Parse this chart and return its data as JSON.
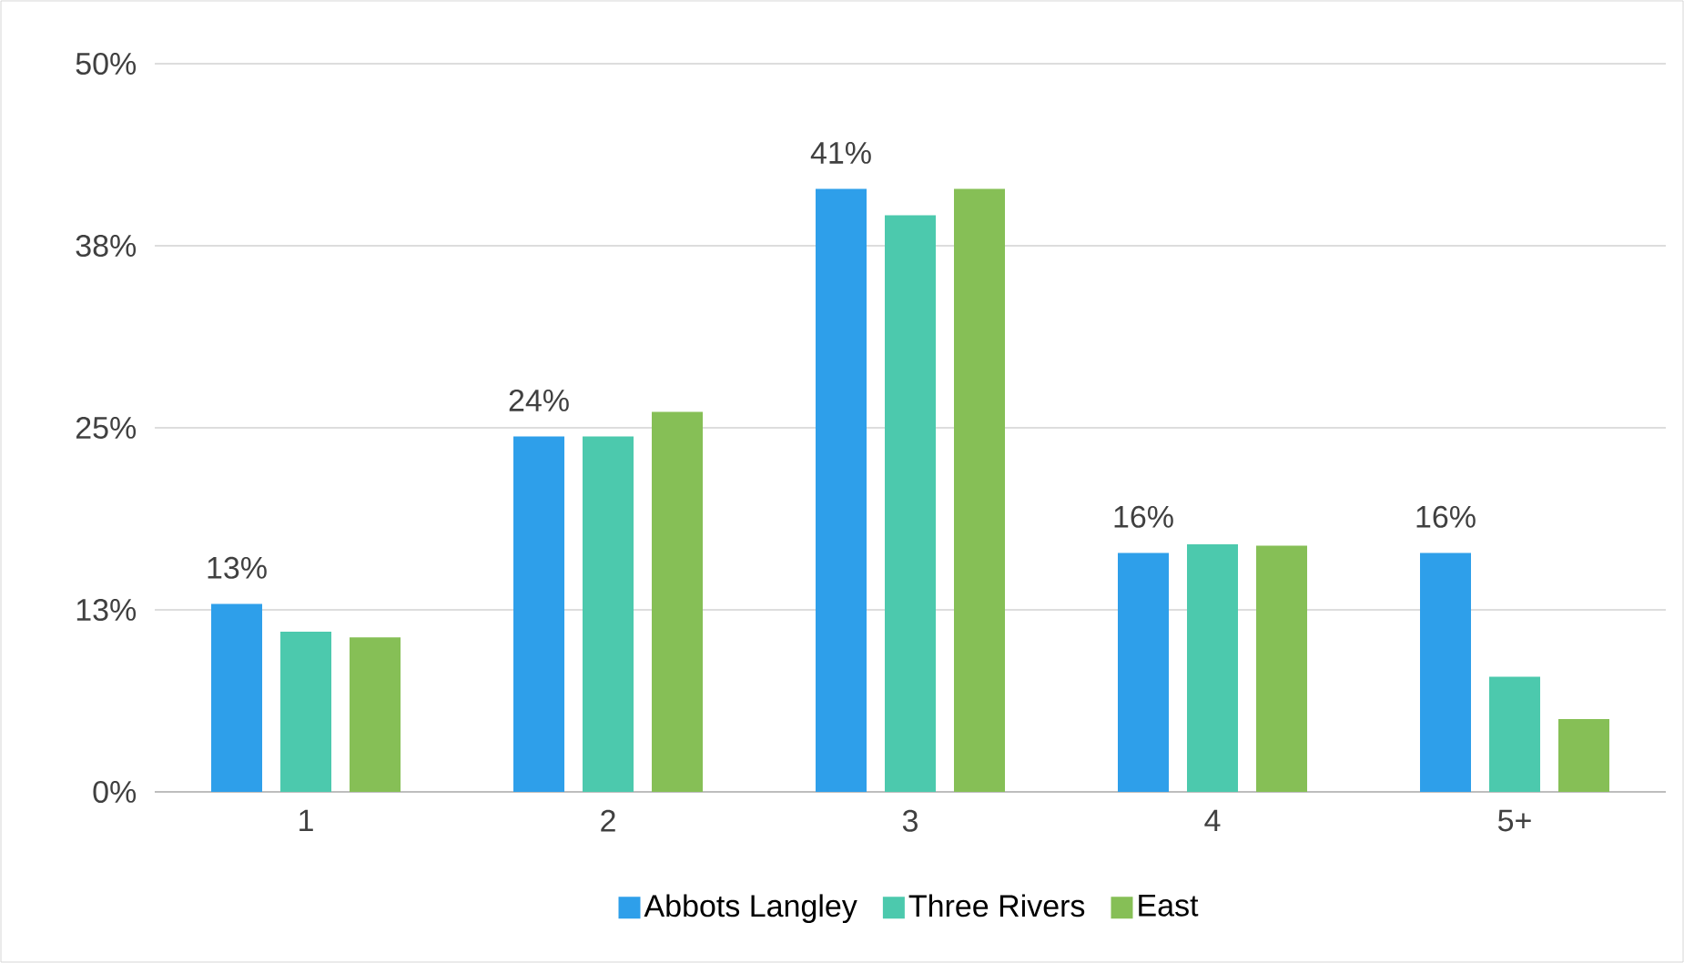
{
  "chart_data": {
    "type": "bar",
    "categories": [
      "1",
      "2",
      "3",
      "4",
      "5+"
    ],
    "series": [
      {
        "name": "Abbots Langley",
        "color": "#2e9fea",
        "values": [
          12.9,
          24.4,
          41.4,
          16.4,
          16.4
        ],
        "value_labels": [
          "13%",
          "24%",
          "41%",
          "16%",
          "16%"
        ]
      },
      {
        "name": "Three Rivers",
        "color": "#4cc9ad",
        "values": [
          11.0,
          24.4,
          39.6,
          17.0,
          7.9
        ]
      },
      {
        "name": "East",
        "color": "#86bf56",
        "values": [
          10.6,
          26.1,
          41.4,
          16.9,
          5.0
        ]
      }
    ],
    "ylim": [
      0,
      50
    ],
    "yticks": [
      {
        "value": 0,
        "label": "0%"
      },
      {
        "value": 12.5,
        "label": "13%"
      },
      {
        "value": 25,
        "label": "25%"
      },
      {
        "value": 37.5,
        "label": "38%"
      },
      {
        "value": 50,
        "label": "50%"
      }
    ],
    "grid": "y",
    "legend": "bottom"
  }
}
